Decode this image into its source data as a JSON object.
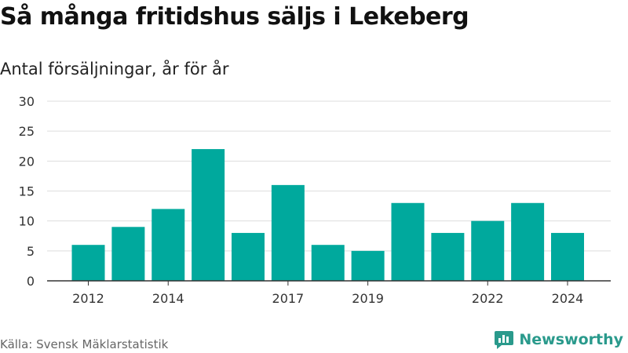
{
  "title": "Så många fritidshus säljs i Lekeberg",
  "subtitle": "Antal försäljningar, år för år",
  "source": "Källa: Svensk Mäklarstatistik",
  "brand": {
    "name": "Newsworthy",
    "icon": "newsworthy-logo-icon"
  },
  "colors": {
    "bar": "#00a99d",
    "grid": "#dddddd",
    "axis": "#333333",
    "brand": "#2a9a8c"
  },
  "chart_data": {
    "type": "bar",
    "categories": [
      "2012",
      "2013",
      "2014",
      "2015",
      "2016",
      "2017",
      "2018",
      "2019",
      "2020",
      "2021",
      "2022",
      "2023",
      "2024"
    ],
    "tick_labels": [
      "2012",
      "",
      "2014",
      "",
      "",
      "2017",
      "",
      "2019",
      "",
      "",
      "2022",
      "",
      "2024"
    ],
    "values": [
      6,
      9,
      12,
      22,
      8,
      16,
      6,
      5,
      13,
      8,
      10,
      13,
      8
    ],
    "ylim": [
      0,
      30
    ],
    "yticks": [
      0,
      5,
      10,
      15,
      20,
      25,
      30
    ],
    "grid": true,
    "legend": "none"
  }
}
